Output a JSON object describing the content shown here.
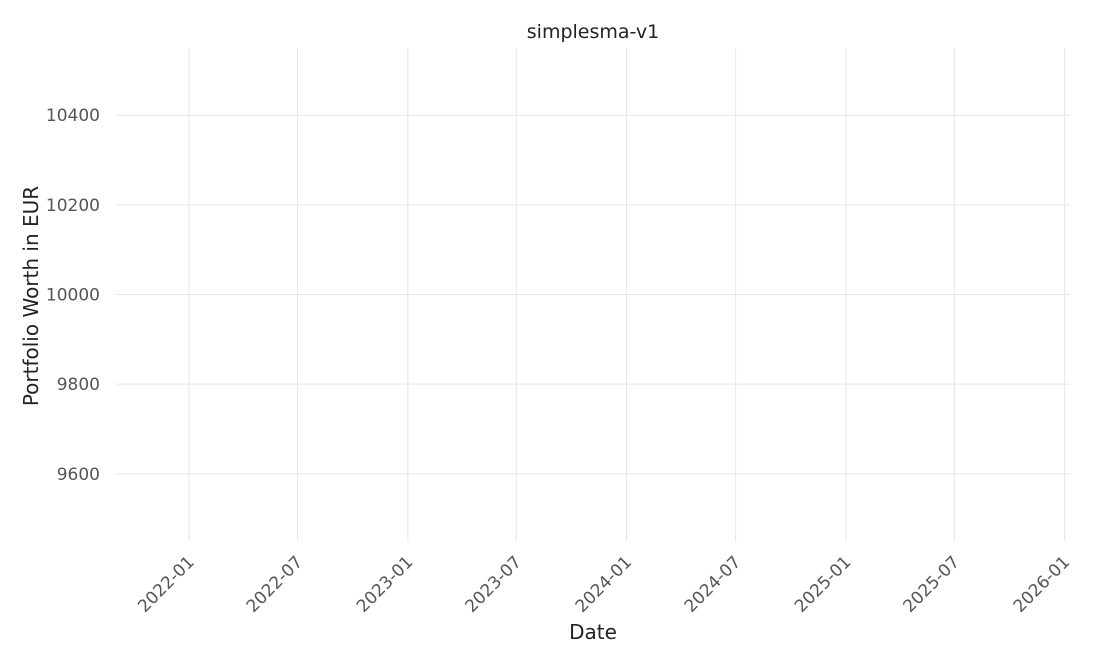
{
  "chart_data": {
    "type": "line",
    "title": "simplesma-v1",
    "xlabel": "Date",
    "ylabel": "Portfolio Worth in EUR",
    "x_ticks": [
      "2022-01",
      "2022-07",
      "2023-01",
      "2023-07",
      "2024-01",
      "2024-07",
      "2025-01",
      "2025-07",
      "2026-01"
    ],
    "y_ticks": [
      9600,
      9800,
      10000,
      10200,
      10400
    ],
    "xlim": [
      "2021-09-01",
      "2026-01-10"
    ],
    "ylim": [
      9450,
      10550
    ],
    "grid": true,
    "series": []
  }
}
